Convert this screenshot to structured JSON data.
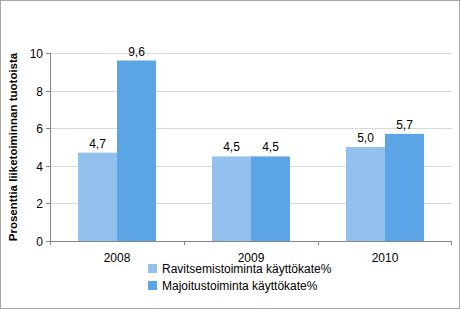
{
  "chart_data": {
    "type": "bar",
    "y_label": "Prosenttia liiketoiminnan tuotoista",
    "categories": [
      "2008",
      "2009",
      "2010"
    ],
    "series": [
      {
        "name": "Ravitsemistoiminta käyttökate%",
        "color": "#93c1ee",
        "values": [
          4.7,
          4.5,
          5.0
        ],
        "value_labels": [
          "4,7",
          "4,5",
          "5,0"
        ]
      },
      {
        "name": "Majoitustoiminta käyttökate%",
        "color": "#5ba4e6",
        "values": [
          9.6,
          4.5,
          5.7
        ],
        "value_labels": [
          "9,6",
          "4,5",
          "5,7"
        ]
      }
    ],
    "ylim": [
      0,
      10
    ],
    "yticks": [
      0,
      2,
      4,
      6,
      8,
      10
    ],
    "grid": true,
    "legend": "bottom",
    "data_labels": true
  }
}
